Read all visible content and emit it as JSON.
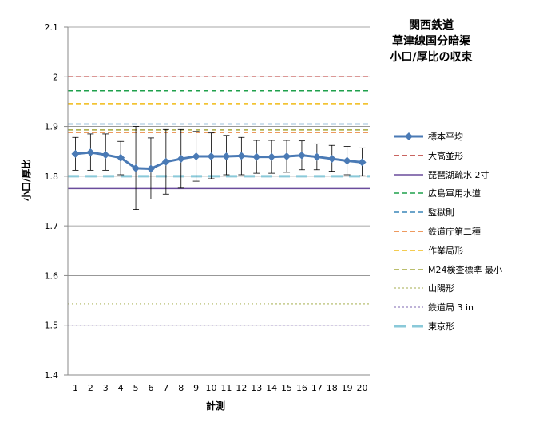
{
  "chart_data": {
    "type": "line",
    "title_lines": [
      "関西鉄道",
      "草津線国分暗渠",
      "小口/厚比の収束"
    ],
    "xlabel": "計測",
    "ylabel": "小口/厚比",
    "x": [
      1,
      2,
      3,
      4,
      5,
      6,
      7,
      8,
      9,
      10,
      11,
      12,
      13,
      14,
      15,
      16,
      17,
      18,
      19,
      20
    ],
    "xlim": [
      1,
      20
    ],
    "ylim": [
      1.4,
      2.1
    ],
    "yticks": [
      1.4,
      1.5,
      1.6,
      1.7,
      1.8,
      1.9,
      2.0,
      2.1
    ],
    "ytick_labels": [
      "1.4",
      "1.5",
      "1.6",
      "1.7",
      "1.8",
      "1.9",
      "2",
      "2.1"
    ],
    "grid": "horizontal-major",
    "legend_position": "right",
    "series": [
      {
        "name": "標本平均",
        "style": "line-marker",
        "color": "#4a7ab5",
        "values": [
          1.845,
          1.848,
          1.843,
          1.837,
          1.816,
          1.815,
          1.829,
          1.835,
          1.84,
          1.84,
          1.84,
          1.841,
          1.839,
          1.839,
          1.84,
          1.842,
          1.839,
          1.835,
          1.831,
          1.828
        ],
        "error_low": [
          1.812,
          1.812,
          1.812,
          1.803,
          1.733,
          1.754,
          1.764,
          1.776,
          1.79,
          1.795,
          1.803,
          1.803,
          1.806,
          1.806,
          1.808,
          1.813,
          1.813,
          1.81,
          1.803,
          1.801
        ],
        "error_high": [
          1.878,
          1.885,
          1.885,
          1.87,
          1.9,
          1.877,
          1.894,
          1.894,
          1.89,
          1.887,
          1.882,
          1.878,
          1.872,
          1.872,
          1.872,
          1.871,
          1.865,
          1.862,
          1.86,
          1.857
        ]
      },
      {
        "name": "大高並形",
        "style": "dashed",
        "color": "#b7312c",
        "value": 2.0
      },
      {
        "name": "琵琶湖疏水 2寸",
        "style": "solid",
        "color": "#6a4c9c",
        "value": 1.775
      },
      {
        "name": "広島軍用水道",
        "style": "dashed",
        "color": "#1fa04c",
        "value": 1.972
      },
      {
        "name": "監獄則",
        "style": "dashed",
        "color": "#3a86b8",
        "value": 1.905
      },
      {
        "name": "鉄道庁第二種",
        "style": "dashed",
        "color": "#e8782a",
        "value": 1.888
      },
      {
        "name": "作業局形",
        "style": "dashed",
        "color": "#f0bb16",
        "value": 1.946
      },
      {
        "name": "M24検査標準 最小",
        "style": "dashed",
        "color": "#a3a83c",
        "value": 1.893
      },
      {
        "name": "山陽形",
        "style": "dotted",
        "color": "#c4c98a",
        "value": 1.543
      },
      {
        "name": "鉄道局 3 in",
        "style": "dotted",
        "color": "#a99acb",
        "value": 1.5
      },
      {
        "name": "東京形",
        "style": "long-dash",
        "color": "#8ac9d9",
        "value": 1.8
      }
    ]
  }
}
